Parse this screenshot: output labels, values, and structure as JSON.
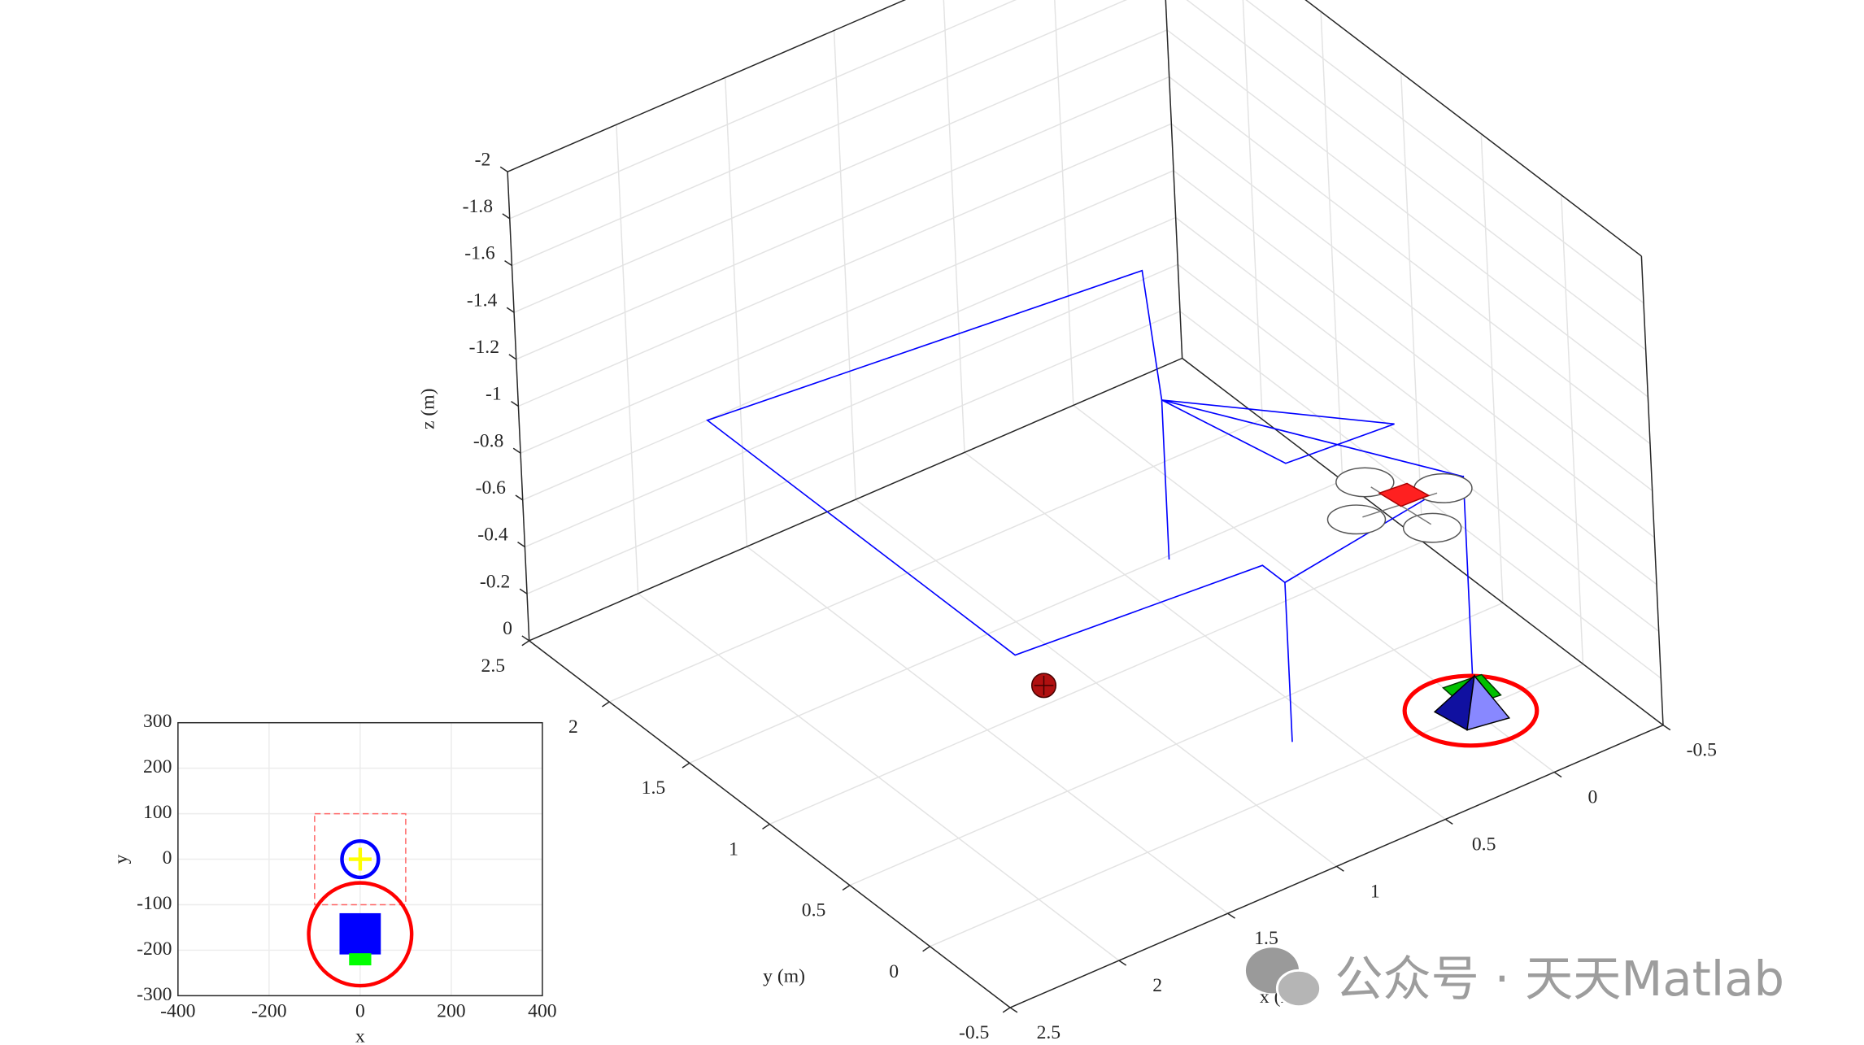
{
  "chart_data": [
    {
      "type": "line3d",
      "xlabel": "x (m)",
      "ylabel": "y (m)",
      "zlabel": "z (m)",
      "xlim": [
        -0.5,
        2.5
      ],
      "xticks": [
        -0.5,
        0,
        0.5,
        1,
        1.5,
        2,
        2.5
      ],
      "ylim": [
        -0.5,
        2.5
      ],
      "yticks": [
        -0.5,
        0,
        0.5,
        1,
        1.5,
        2,
        2.5
      ],
      "zlim": [
        -2,
        0
      ],
      "zticks": [
        -2,
        -1.8,
        -1.6,
        -1.4,
        -1.2,
        -1,
        -0.8,
        -0.6,
        -0.4,
        -0.2,
        0
      ],
      "grid": true,
      "color": "#0000ff",
      "x": [
        0.59,
        0.59,
        0.15,
        2,
        2,
        0.93,
        0.93,
        0.93,
        null,
        0.93,
        0,
        0,
        null,
        0.59,
        0,
        0.47,
        0.59,
        0
      ],
      "y": [
        1.08,
        1.08,
        1.8,
        2,
        0.08,
        -0.01,
        -0.15,
        -0.15,
        null,
        -0.15,
        0,
        0,
        null,
        1.08,
        0.43,
        0.47,
        1.08,
        0
      ],
      "z": [
        -0.32,
        -1,
        -1,
        -1,
        -1,
        -1,
        -1,
        -0.32,
        null,
        -1,
        -1,
        -0.15,
        null,
        -1,
        -1,
        -1,
        -1,
        -1
      ]
    },
    {
      "type": "overlay",
      "xlabel": "x",
      "ylabel": "y",
      "xlim": [
        -400,
        400
      ],
      "xticks": [
        -400,
        -200,
        0,
        200,
        400
      ],
      "ylim": [
        -300,
        300
      ],
      "yticks": [
        -300,
        -200,
        -100,
        0,
        100,
        200,
        300
      ],
      "grid": true,
      "circles": [
        {
          "x": 0,
          "y": 0,
          "r": 40,
          "color": "#0000ff"
        },
        {
          "x": 0,
          "y": -165,
          "r": 113,
          "color": "#ff0000"
        }
      ],
      "rects": [
        {
          "x": [
            -100,
            100
          ],
          "y": [
            -100,
            100
          ],
          "color": "#ff6666",
          "style": "dashed"
        },
        {
          "x": [
            -44,
            44
          ],
          "y": [
            -208,
            -120
          ],
          "color": "#0000ff",
          "style": "filled"
        },
        {
          "x": [
            -23,
            23
          ],
          "y": [
            -232,
            -208
          ],
          "color": "#00ff00",
          "style": "filled"
        }
      ],
      "plus": {
        "x": 0,
        "y": 0,
        "size": 25,
        "color": "#ffff00"
      }
    }
  ],
  "watermark": "公众号 · 天天Matlab"
}
